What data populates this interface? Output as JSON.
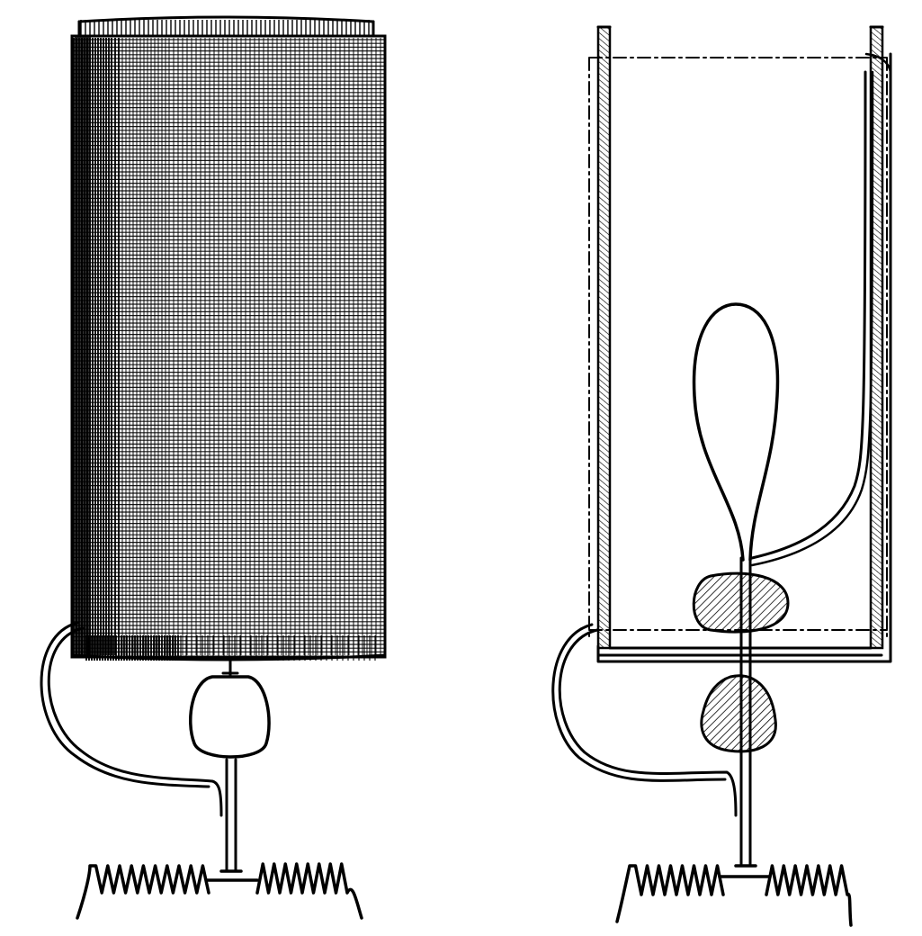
{
  "figure": {
    "panels": [
      {
        "id": "left",
        "view": "exterior"
      },
      {
        "id": "right",
        "view": "cross-section"
      }
    ],
    "colors": {
      "ink": "#000000",
      "paper": "#ffffff"
    }
  }
}
